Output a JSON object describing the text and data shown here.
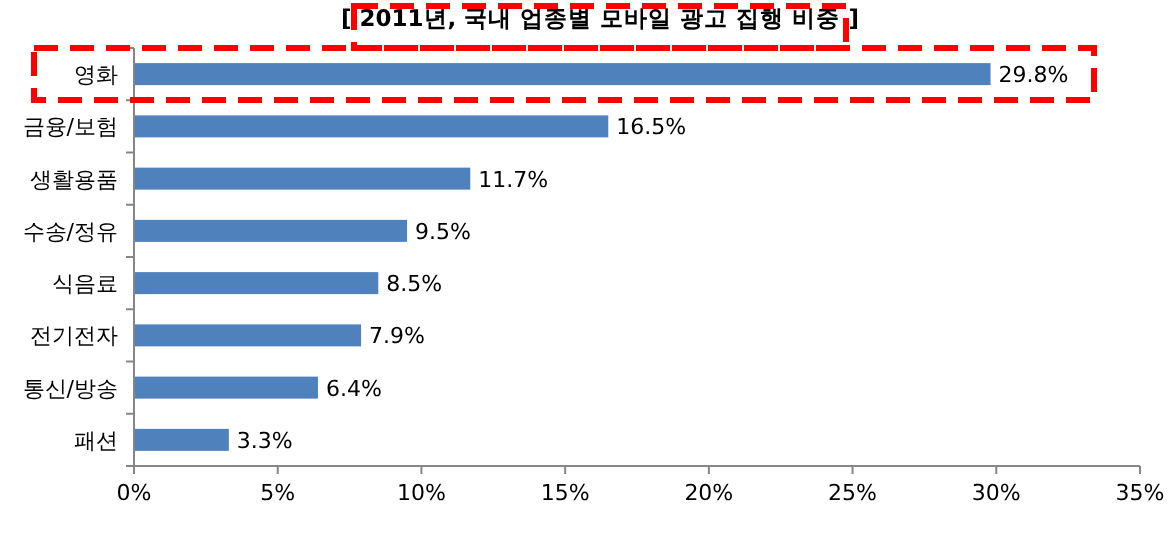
{
  "chart_data": {
    "type": "bar",
    "orientation": "horizontal",
    "title": "[ 2011년, 국내 업종별 모바일 광고 집행 비중 ]",
    "categories": [
      "영화",
      "금융/보험",
      "생활용품",
      "수송/정유",
      "식음료",
      "전기전자",
      "통신/방송",
      "패션"
    ],
    "values": [
      29.8,
      16.5,
      11.7,
      9.5,
      8.5,
      7.9,
      6.4,
      3.3
    ],
    "value_labels": [
      "29.8%",
      "16.5%",
      "11.7%",
      "9.5%",
      "8.5%",
      "7.9%",
      "6.4%",
      "3.3%"
    ],
    "color": "#4f81bd",
    "xlim": [
      0,
      35
    ],
    "xticks": [
      {
        "value": 0,
        "label": "0%"
      },
      {
        "value": 5,
        "label": "5%"
      },
      {
        "value": 10,
        "label": "10%"
      },
      {
        "value": 15,
        "label": "15%"
      },
      {
        "value": 20,
        "label": "20%"
      },
      {
        "value": 25,
        "label": "25%"
      },
      {
        "value": 30,
        "label": "30%"
      },
      {
        "value": 35,
        "label": "35%"
      }
    ],
    "grid": false
  }
}
